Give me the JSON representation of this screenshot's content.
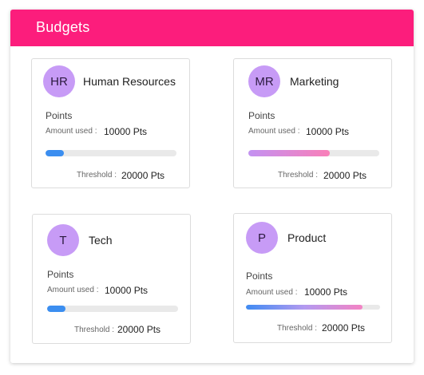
{
  "header": {
    "title": "Budgets",
    "color": "#fc1d7c"
  },
  "cards": [
    {
      "initials": "HR",
      "name": "Human Resources",
      "points_label": "Points",
      "amount_label": "Amount used :",
      "amount_value": "10000 Pts",
      "threshold_label": "Threshold :",
      "threshold_value": "20000 Pts",
      "progress_fraction": 0.14,
      "bar_style": "blue"
    },
    {
      "initials": "MR",
      "name": "Marketing",
      "points_label": "Points",
      "amount_label": "Amount used :",
      "amount_value": "10000 Pts",
      "threshold_label": "Threshold :",
      "threshold_value": "20000 Pts",
      "progress_fraction": 0.62,
      "bar_style": "purple-pink"
    },
    {
      "initials": "T",
      "name": "Tech",
      "points_label": "Points",
      "amount_label": "Amount used :",
      "amount_value": "10000 Pts",
      "threshold_label": "Threshold :",
      "threshold_value": "20000 Pts",
      "progress_fraction": 0.14,
      "bar_style": "blue"
    },
    {
      "initials": "P",
      "name": "Product",
      "points_label": "Points",
      "amount_label": "Amount used :",
      "amount_value": "10000 Pts",
      "threshold_label": "Threshold :",
      "threshold_value": "20000 Pts",
      "progress_fraction": 0.87,
      "bar_style": "blue-purple-pink"
    }
  ],
  "colors": {
    "avatar": "#c79bf6",
    "track": "#e9e9e9",
    "blue": "#3b8ef0",
    "pink": "#f97fb8"
  }
}
